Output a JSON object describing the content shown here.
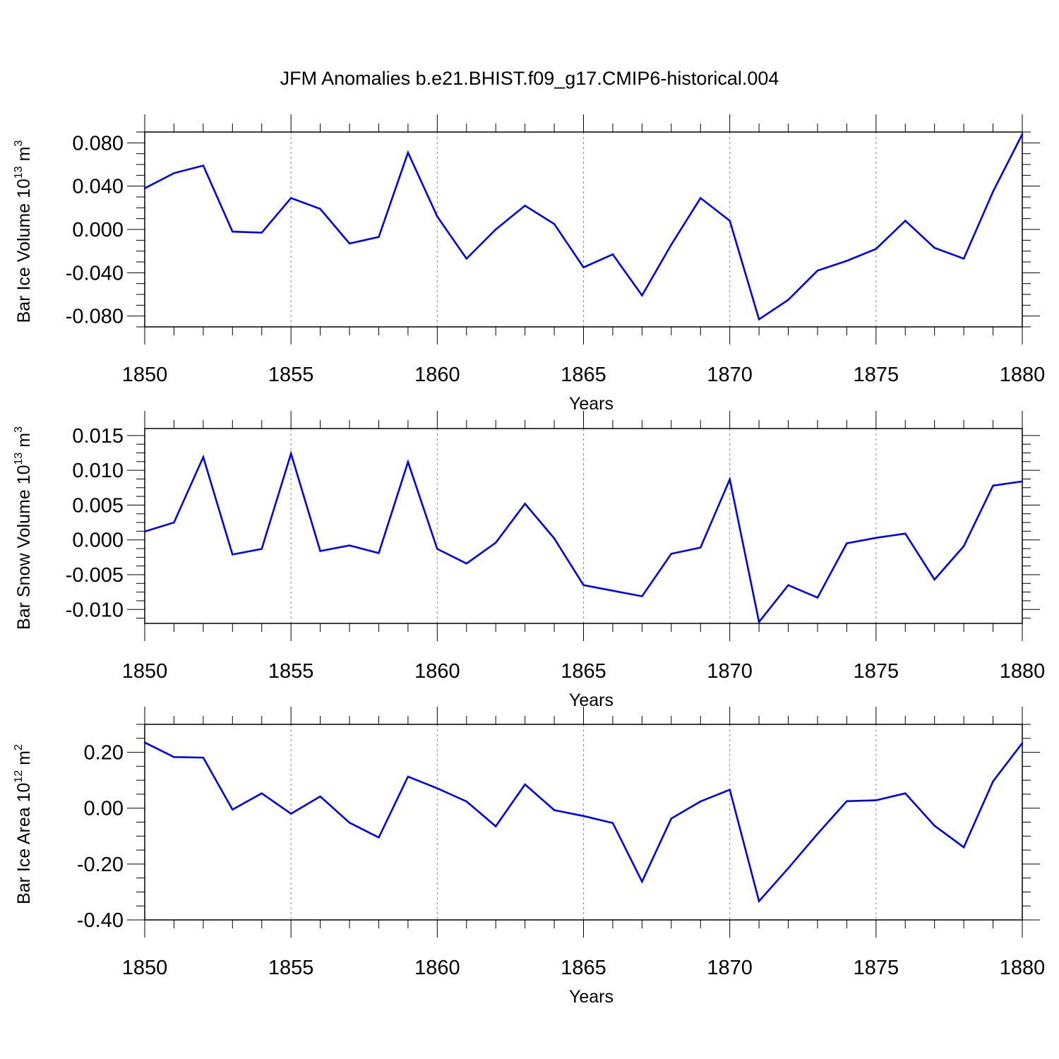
{
  "title": "JFM Anomalies b.e21.BHIST.f09_g17.CMIP6-historical.004",
  "line_color": "#0000ff",
  "chart_data": [
    {
      "type": "line",
      "ylabel_main": "Bar Ice Volume 10",
      "ylabel_exp": "13",
      "ylabel_unit": " m",
      "ylabel_unit_exp": "3",
      "xlabel": "Years",
      "xlim": [
        1850,
        1880
      ],
      "ylim": [
        -0.09,
        0.09
      ],
      "x_ticks": [
        1850,
        1855,
        1860,
        1865,
        1870,
        1875,
        1880
      ],
      "x_tick_labels": [
        "1850",
        "1855",
        "1860",
        "1865",
        "1870",
        "1875",
        "1880"
      ],
      "y_ticks": [
        0.08,
        0.04,
        0.0,
        -0.04,
        -0.08
      ],
      "y_tick_labels": [
        "0.080",
        "0.040",
        "0.000",
        "-0.040",
        "-0.080"
      ],
      "x": [
        1850,
        1851,
        1852,
        1853,
        1854,
        1855,
        1856,
        1857,
        1858,
        1859,
        1860,
        1861,
        1862,
        1863,
        1864,
        1865,
        1866,
        1867,
        1868,
        1869,
        1870,
        1871,
        1872,
        1873,
        1874,
        1875,
        1876,
        1877,
        1878,
        1879,
        1880
      ],
      "values": [
        0.038,
        0.052,
        0.059,
        -0.002,
        -0.003,
        0.029,
        0.019,
        -0.013,
        -0.007,
        0.071,
        0.012,
        -0.027,
        0.0,
        0.022,
        0.005,
        -0.035,
        -0.023,
        -0.061,
        -0.014,
        0.029,
        0.008,
        -0.083,
        -0.065,
        -0.038,
        -0.029,
        -0.018,
        0.008,
        -0.017,
        -0.027,
        0.035,
        0.088
      ]
    },
    {
      "type": "line",
      "ylabel_main": "Bar Snow Volume 10",
      "ylabel_exp": "13",
      "ylabel_unit": " m",
      "ylabel_unit_exp": "3",
      "xlabel": "Years",
      "xlim": [
        1850,
        1880
      ],
      "ylim": [
        -0.012,
        0.016
      ],
      "x_ticks": [
        1850,
        1855,
        1860,
        1865,
        1870,
        1875,
        1880
      ],
      "x_tick_labels": [
        "1850",
        "1855",
        "1860",
        "1865",
        "1870",
        "1875",
        "1880"
      ],
      "y_ticks": [
        0.015,
        0.01,
        0.005,
        0.0,
        -0.005,
        -0.01
      ],
      "y_tick_labels": [
        "0.015",
        "0.010",
        "0.005",
        "0.000",
        "-0.005",
        "-0.010"
      ],
      "x": [
        1850,
        1851,
        1852,
        1853,
        1854,
        1855,
        1856,
        1857,
        1858,
        1859,
        1860,
        1861,
        1862,
        1863,
        1864,
        1865,
        1866,
        1867,
        1868,
        1869,
        1870,
        1871,
        1872,
        1873,
        1874,
        1875,
        1876,
        1877,
        1878,
        1879,
        1880
      ],
      "values": [
        0.0012,
        0.0025,
        0.0119,
        -0.0021,
        -0.0013,
        0.0124,
        -0.0016,
        -0.0008,
        -0.0019,
        0.0112,
        -0.0013,
        -0.0034,
        -0.0004,
        0.0052,
        0.0002,
        -0.0065,
        -0.0073,
        -0.0081,
        -0.002,
        -0.0011,
        0.0087,
        -0.0118,
        -0.0065,
        -0.0083,
        -0.0005,
        0.0003,
        0.0009,
        -0.0057,
        -0.0009,
        0.0078,
        0.0084
      ]
    },
    {
      "type": "line",
      "ylabel_main": "Bar Ice Area 10",
      "ylabel_exp": "12",
      "ylabel_unit": " m",
      "ylabel_unit_exp": "2",
      "xlabel": "Years",
      "xlim": [
        1850,
        1880
      ],
      "ylim": [
        -0.4,
        0.3
      ],
      "x_ticks": [
        1850,
        1855,
        1860,
        1865,
        1870,
        1875,
        1880
      ],
      "x_tick_labels": [
        "1850",
        "1855",
        "1860",
        "1865",
        "1870",
        "1875",
        "1880"
      ],
      "y_ticks": [
        0.2,
        0.0,
        -0.2,
        -0.4
      ],
      "y_tick_labels": [
        "0.20",
        "0.00",
        "-0.20",
        "-0.40"
      ],
      "x": [
        1850,
        1851,
        1852,
        1853,
        1854,
        1855,
        1856,
        1857,
        1858,
        1859,
        1860,
        1861,
        1862,
        1863,
        1864,
        1865,
        1866,
        1867,
        1868,
        1869,
        1870,
        1871,
        1872,
        1873,
        1874,
        1875,
        1876,
        1877,
        1878,
        1879,
        1880
      ],
      "values": [
        0.235,
        0.183,
        0.181,
        -0.005,
        0.053,
        -0.02,
        0.042,
        -0.052,
        -0.105,
        0.113,
        0.071,
        0.024,
        -0.065,
        0.085,
        -0.007,
        -0.028,
        -0.053,
        -0.263,
        -0.037,
        0.024,
        0.066,
        -0.333,
        -0.215,
        -0.092,
        0.025,
        0.028,
        0.053,
        -0.063,
        -0.14,
        0.096,
        0.233
      ]
    }
  ]
}
